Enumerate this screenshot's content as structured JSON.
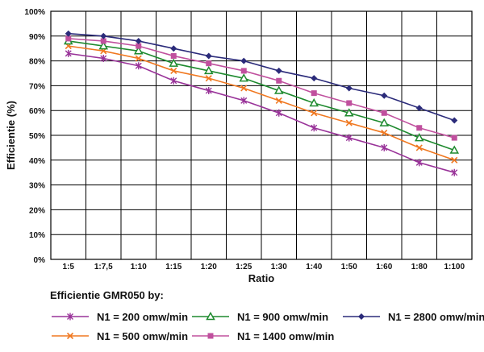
{
  "chart_data": {
    "type": "line",
    "title": "",
    "xlabel": "Ratio",
    "ylabel": "Efficientie (%)",
    "categories": [
      "1:5",
      "1:7,5",
      "1:10",
      "1:15",
      "1:20",
      "1:25",
      "1:30",
      "1:40",
      "1:50",
      "1:60",
      "1:80",
      "1:100"
    ],
    "y_ticks": [
      "0%",
      "10%",
      "20%",
      "30%",
      "40%",
      "50%",
      "60%",
      "70%",
      "80%",
      "90%",
      "100%"
    ],
    "ylim": [
      0,
      100
    ],
    "grid": true,
    "legend_title": "Efficientie GMR050 by:",
    "legend_position": "bottom",
    "series": [
      {
        "name": "N1 = 200 omw/min",
        "color": "#993399",
        "marker": "asterisk",
        "values": [
          83,
          81,
          78,
          72,
          68,
          64,
          59,
          53,
          49,
          45,
          39,
          35
        ]
      },
      {
        "name": "N1 = 500 omw/min",
        "color": "#f07820",
        "marker": "x",
        "values": [
          86,
          84,
          81,
          76,
          73,
          69,
          64,
          59,
          55,
          51,
          45,
          40
        ]
      },
      {
        "name": "N1 = 900 omw/min",
        "color": "#1e8a2e",
        "marker": "triangle",
        "values": [
          88,
          86,
          84,
          79,
          76,
          73,
          68,
          63,
          59,
          55,
          49,
          44
        ]
      },
      {
        "name": "N1 = 1400 omw/min",
        "color": "#c0509e",
        "marker": "square",
        "values": [
          89,
          88,
          86,
          82,
          79,
          76,
          72,
          67,
          63,
          59,
          53,
          49
        ]
      },
      {
        "name": "N1 = 2800 omw/min",
        "color": "#2b2b7a",
        "marker": "diamond",
        "values": [
          91,
          90,
          88,
          85,
          82,
          80,
          76,
          73,
          69,
          66,
          61,
          56
        ]
      }
    ]
  }
}
